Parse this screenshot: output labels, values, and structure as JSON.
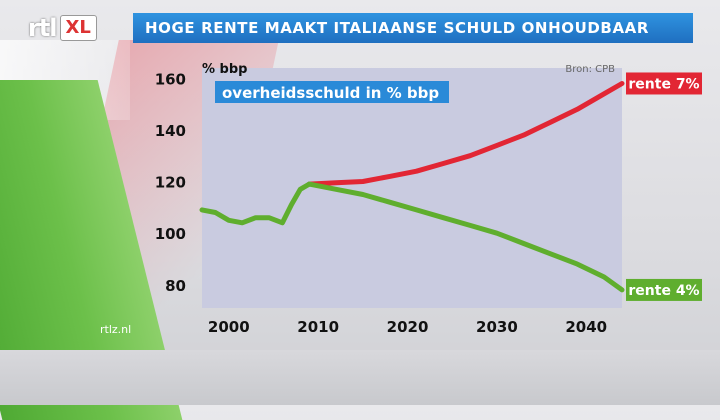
{
  "header": {
    "title": "HOGE RENTE MAAKT ITALIAANSE SCHULD ONHOUDBAAR"
  },
  "logo": {
    "rtl": "rtl",
    "xl": "XL"
  },
  "watermark": "rtlz.nl",
  "colors": {
    "header_blue": "#2a86d6",
    "red_series": "#e22634",
    "green_series": "#5fae2e",
    "plot_bg": "#c9cbe0"
  },
  "chart_data": {
    "type": "line",
    "title": "overheidsschuld in % bbp",
    "ylabel": "% bbp",
    "source": "Bron: CPB",
    "xlim": [
      1997,
      2044
    ],
    "ylim": [
      71,
      164
    ],
    "xticks": [
      2000,
      2010,
      2020,
      2030,
      2040
    ],
    "yticks": [
      80,
      100,
      120,
      140,
      160
    ],
    "grid": false,
    "series": [
      {
        "name": "rente 7%",
        "color": "#e22634",
        "x": [
          2009,
          2012,
          2015,
          2018,
          2021,
          2024,
          2027,
          2030,
          2033,
          2036,
          2039,
          2042,
          2044
        ],
        "values": [
          119,
          119.5,
          120,
          122,
          124,
          127,
          130,
          134,
          138,
          143,
          148,
          154,
          158
        ]
      },
      {
        "name": "rente 4%",
        "color": "#5fae2e",
        "x": [
          2009,
          2012,
          2015,
          2018,
          2021,
          2024,
          2027,
          2030,
          2033,
          2036,
          2039,
          2042,
          2044
        ],
        "values": [
          119,
          117,
          115,
          112,
          109,
          106,
          103,
          100,
          96,
          92,
          88,
          83,
          78
        ]
      },
      {
        "name": "",
        "color": "#5fae2e",
        "x": [
          1997,
          1998.5,
          2000,
          2001.5,
          2003,
          2004.5,
          2006,
          2007,
          2008,
          2009
        ],
        "values": [
          109,
          108,
          105,
          104,
          106,
          106,
          104,
          111,
          117,
          119
        ]
      }
    ]
  }
}
